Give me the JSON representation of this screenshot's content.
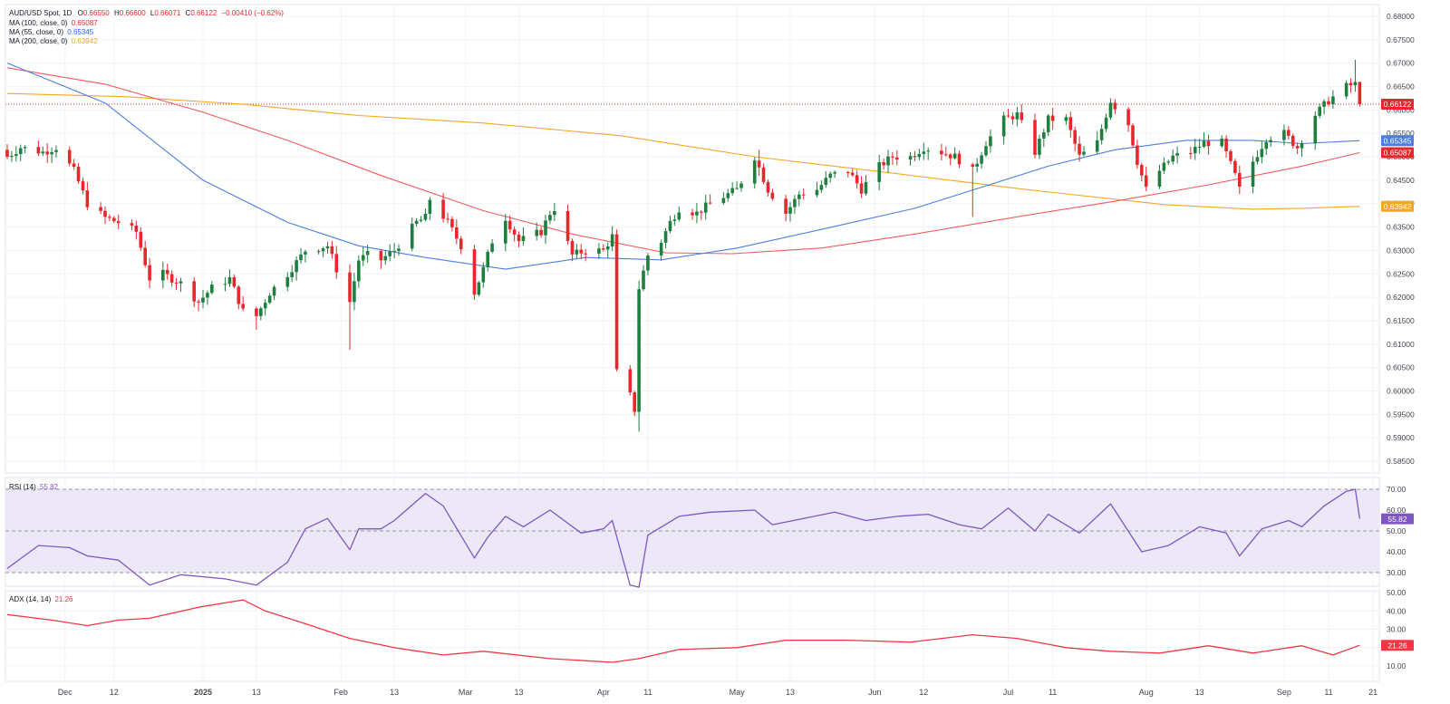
{
  "colors": {
    "up": "#1e7f3f",
    "down": "#e8262b",
    "ma100": "#f05a5f",
    "ma55": "#4a7fe0",
    "ma200": "#f5a623",
    "rsi": "#7e57c2",
    "rsi_band": "#ece8f8",
    "adx": "#f23645",
    "grid": "#f0f3fa",
    "text": "#131722",
    "axis_text": "#434651"
  },
  "header": {
    "symbol": "AUD/USD Spot, 1D",
    "o_label": "O",
    "o": "0.66550",
    "h_label": "H",
    "h": "0.66600",
    "l_label": "L",
    "l": "0.66071",
    "c_label": "C",
    "c": "0.66122",
    "change": "−0.00410 (−0.62%)"
  },
  "indicators": {
    "ma100": {
      "label": "MA (100, close, 0)",
      "value": "0.65087"
    },
    "ma55": {
      "label": "MA (55, close, 0)",
      "value": "0.65345"
    },
    "ma200": {
      "label": "MA (200, close, 0)",
      "value": "0.63942"
    },
    "rsi": {
      "label": "RSI (14)",
      "value": "55.82"
    },
    "adx": {
      "label": "ADX (14, 14)",
      "value": "21.26"
    }
  },
  "chart_data": [
    {
      "type": "candlestick",
      "title": "AUD/USD Spot, 1D",
      "ylim": [
        0.5825,
        0.6825
      ],
      "y_ticks": [
        "0.68000",
        "0.67500",
        "0.67000",
        "0.66500",
        "0.66000",
        "0.65500",
        "0.65000",
        "0.64500",
        "0.64000",
        "0.63500",
        "0.63000",
        "0.62500",
        "0.62000",
        "0.61500",
        "0.61000",
        "0.60500",
        "0.60000",
        "0.59500",
        "0.59000",
        "0.58500"
      ],
      "x_range": [
        "2024-11-18",
        "2025-09-22"
      ],
      "x_ticks": [
        {
          "date": "2024-12-01",
          "label": "Dec"
        },
        {
          "date": "2024-12-12",
          "label": "12"
        },
        {
          "date": "2025-01-01",
          "label": "2025"
        },
        {
          "date": "2025-01-13",
          "label": "13"
        },
        {
          "date": "2025-02-01",
          "label": "Feb"
        },
        {
          "date": "2025-02-13",
          "label": "13"
        },
        {
          "date": "2025-03-01",
          "label": "Mar"
        },
        {
          "date": "2025-03-13",
          "label": "13"
        },
        {
          "date": "2025-04-01",
          "label": "Apr"
        },
        {
          "date": "2025-04-11",
          "label": "11"
        },
        {
          "date": "2025-05-01",
          "label": "May"
        },
        {
          "date": "2025-05-13",
          "label": "13"
        },
        {
          "date": "2025-06-01",
          "label": "Jun"
        },
        {
          "date": "2025-06-12",
          "label": "12"
        },
        {
          "date": "2025-07-01",
          "label": "Jul"
        },
        {
          "date": "2025-07-11",
          "label": "11"
        },
        {
          "date": "2025-08-01",
          "label": "Aug"
        },
        {
          "date": "2025-08-13",
          "label": "13"
        },
        {
          "date": "2025-09-01",
          "label": "Sep"
        },
        {
          "date": "2025-09-11",
          "label": "11"
        },
        {
          "date": "2025-09-21",
          "label": "21"
        }
      ],
      "current_price": 0.66122,
      "price_labels": [
        {
          "value": 0.66122,
          "text": "0.66122",
          "color": "#e8262b"
        },
        {
          "value": 0.65345,
          "text": "0.65345",
          "color": "#4a7fe0"
        },
        {
          "value": 0.65087,
          "text": "0.65087",
          "color": "#e8262b"
        },
        {
          "value": 0.63942,
          "text": "0.63942",
          "color": "#f5a623"
        }
      ],
      "close_anchors": [
        [
          "2024-11-18",
          0.65
        ],
        [
          "2024-11-21",
          0.652
        ],
        [
          "2024-11-26",
          0.651
        ],
        [
          "2024-11-29",
          0.652
        ],
        [
          "2024-12-03",
          0.647
        ],
        [
          "2024-12-06",
          0.64
        ],
        [
          "2024-12-10",
          0.637
        ],
        [
          "2024-12-13",
          0.636
        ],
        [
          "2024-12-17",
          0.634
        ],
        [
          "2024-12-20",
          0.624
        ],
        [
          "2024-12-23",
          0.625
        ],
        [
          "2024-12-27",
          0.623
        ],
        [
          "2024-12-31",
          0.619
        ],
        [
          "2025-01-03",
          0.622
        ],
        [
          "2025-01-07",
          0.624
        ],
        [
          "2025-01-10",
          0.617
        ],
        [
          "2025-01-13",
          0.616
        ],
        [
          "2025-01-16",
          0.621
        ],
        [
          "2025-01-20",
          0.625
        ],
        [
          "2025-01-24",
          0.63
        ],
        [
          "2025-01-29",
          0.631
        ],
        [
          "2025-01-31",
          0.626
        ],
        [
          "2025-02-03",
          0.619
        ],
        [
          "2025-02-05",
          0.628
        ],
        [
          "2025-02-07",
          0.629
        ],
        [
          "2025-02-10",
          0.628
        ],
        [
          "2025-02-13",
          0.63
        ],
        [
          "2025-02-18",
          0.636
        ],
        [
          "2025-02-20",
          0.637
        ],
        [
          "2025-02-21",
          0.641
        ],
        [
          "2025-02-25",
          0.636
        ],
        [
          "2025-02-28",
          0.631
        ],
        [
          "2025-03-03",
          0.621
        ],
        [
          "2025-03-05",
          0.626
        ],
        [
          "2025-03-07",
          0.632
        ],
        [
          "2025-03-10",
          0.637
        ],
        [
          "2025-03-13",
          0.632
        ],
        [
          "2025-03-18",
          0.634
        ],
        [
          "2025-03-20",
          0.638
        ],
        [
          "2025-03-21",
          0.639
        ],
        [
          "2025-03-25",
          0.629
        ],
        [
          "2025-03-28",
          0.63
        ],
        [
          "2025-04-01",
          0.63
        ],
        [
          "2025-04-03",
          0.633
        ],
        [
          "2025-04-04",
          0.604
        ],
        [
          "2025-04-07",
          0.599
        ],
        [
          "2025-04-08",
          0.596
        ],
        [
          "2025-04-09",
          0.622
        ],
        [
          "2025-04-11",
          0.629
        ],
        [
          "2025-04-14",
          0.632
        ],
        [
          "2025-04-16",
          0.636
        ],
        [
          "2025-04-18",
          0.639
        ],
        [
          "2025-04-22",
          0.638
        ],
        [
          "2025-04-25",
          0.64
        ],
        [
          "2025-04-29",
          0.642
        ],
        [
          "2025-05-01",
          0.643
        ],
        [
          "2025-05-05",
          0.65
        ],
        [
          "2025-05-08",
          0.643
        ],
        [
          "2025-05-12",
          0.638
        ],
        [
          "2025-05-15",
          0.642
        ],
        [
          "2025-05-19",
          0.643
        ],
        [
          "2025-05-22",
          0.646
        ],
        [
          "2025-05-26",
          0.647
        ],
        [
          "2025-05-29",
          0.643
        ],
        [
          "2025-06-02",
          0.648
        ],
        [
          "2025-06-05",
          0.65
        ],
        [
          "2025-06-09",
          0.65
        ],
        [
          "2025-06-12",
          0.652
        ],
        [
          "2025-06-16",
          0.651
        ],
        [
          "2025-06-19",
          0.65
        ],
        [
          "2025-06-23",
          0.647
        ],
        [
          "2025-06-26",
          0.653
        ],
        [
          "2025-06-30",
          0.658
        ],
        [
          "2025-07-03",
          0.659
        ],
        [
          "2025-07-07",
          0.651
        ],
        [
          "2025-07-10",
          0.658
        ],
        [
          "2025-07-14",
          0.658
        ],
        [
          "2025-07-17",
          0.65
        ],
        [
          "2025-07-21",
          0.653
        ],
        [
          "2025-07-24",
          0.662
        ],
        [
          "2025-07-28",
          0.657
        ],
        [
          "2025-07-30",
          0.649
        ],
        [
          "2025-08-01",
          0.643
        ],
        [
          "2025-08-04",
          0.647
        ],
        [
          "2025-08-07",
          0.65
        ],
        [
          "2025-08-11",
          0.651
        ],
        [
          "2025-08-14",
          0.653
        ],
        [
          "2025-08-18",
          0.653
        ],
        [
          "2025-08-21",
          0.646
        ],
        [
          "2025-08-22",
          0.643
        ],
        [
          "2025-08-25",
          0.649
        ],
        [
          "2025-08-28",
          0.654
        ],
        [
          "2025-09-01",
          0.655
        ],
        [
          "2025-09-04",
          0.652
        ],
        [
          "2025-09-08",
          0.659
        ],
        [
          "2025-09-11",
          0.662
        ],
        [
          "2025-09-15",
          0.665
        ],
        [
          "2025-09-17",
          0.6655
        ],
        [
          "2025-09-18",
          0.66122
        ]
      ],
      "notable_highs": [
        [
          "2025-09-17",
          0.6707
        ],
        [
          "2025-07-24",
          0.6625
        ],
        [
          "2025-05-06",
          0.6515
        ]
      ],
      "notable_lows": [
        [
          "2025-04-09",
          0.5913
        ],
        [
          "2025-02-03",
          0.6088
        ],
        [
          "2025-01-13",
          0.6131
        ],
        [
          "2025-06-23",
          0.6372
        ]
      ]
    },
    {
      "type": "line",
      "name": "MA (55, close, 0)",
      "color": "#4a7fe0",
      "points": [
        [
          "2024-11-18",
          0.67
        ],
        [
          "2024-12-10",
          0.6615
        ],
        [
          "2025-01-01",
          0.645
        ],
        [
          "2025-01-20",
          0.636
        ],
        [
          "2025-02-05",
          0.631
        ],
        [
          "2025-02-20",
          0.6285
        ],
        [
          "2025-03-10",
          0.626
        ],
        [
          "2025-03-28",
          0.6285
        ],
        [
          "2025-04-14",
          0.628
        ],
        [
          "2025-05-01",
          0.6305
        ],
        [
          "2025-05-20",
          0.6345
        ],
        [
          "2025-06-10",
          0.639
        ],
        [
          "2025-06-25",
          0.6435
        ],
        [
          "2025-07-10",
          0.648
        ],
        [
          "2025-07-25",
          0.6515
        ],
        [
          "2025-08-10",
          0.6535
        ],
        [
          "2025-08-25",
          0.6535
        ],
        [
          "2025-09-05",
          0.6528
        ],
        [
          "2025-09-18",
          0.65345
        ]
      ]
    },
    {
      "type": "line",
      "name": "MA (100, close, 0)",
      "color": "#f05a5f",
      "points": [
        [
          "2024-11-18",
          0.669
        ],
        [
          "2024-12-10",
          0.6655
        ],
        [
          "2025-01-01",
          0.6595
        ],
        [
          "2025-01-20",
          0.6535
        ],
        [
          "2025-02-10",
          0.646
        ],
        [
          "2025-03-05",
          0.6385
        ],
        [
          "2025-03-25",
          0.6335
        ],
        [
          "2025-04-15",
          0.6295
        ],
        [
          "2025-04-30",
          0.6293
        ],
        [
          "2025-05-20",
          0.6305
        ],
        [
          "2025-06-10",
          0.6335
        ],
        [
          "2025-07-05",
          0.6375
        ],
        [
          "2025-07-25",
          0.6405
        ],
        [
          "2025-08-15",
          0.644
        ],
        [
          "2025-09-05",
          0.648
        ],
        [
          "2025-09-18",
          0.65087
        ]
      ]
    },
    {
      "type": "line",
      "name": "MA (200, close, 0)",
      "color": "#f5a623",
      "points": [
        [
          "2024-11-18",
          0.6635
        ],
        [
          "2024-12-15",
          0.6628
        ],
        [
          "2025-01-10",
          0.6612
        ],
        [
          "2025-02-05",
          0.6588
        ],
        [
          "2025-03-05",
          0.6572
        ],
        [
          "2025-04-05",
          0.6545
        ],
        [
          "2025-05-05",
          0.65
        ],
        [
          "2025-06-05",
          0.6465
        ],
        [
          "2025-07-05",
          0.643
        ],
        [
          "2025-08-05",
          0.6398
        ],
        [
          "2025-08-25",
          0.6388
        ],
        [
          "2025-09-05",
          0.639
        ],
        [
          "2025-09-18",
          0.63942
        ]
      ]
    },
    {
      "type": "line",
      "name": "RSI (14)",
      "ylim": [
        25,
        75
      ],
      "y_ticks": [
        "70.00",
        "60.00",
        "50.00",
        "40.00",
        "30.00"
      ],
      "band": [
        30,
        70
      ],
      "midline": 50,
      "current": 55.82,
      "points": [
        [
          "2024-11-18",
          32
        ],
        [
          "2024-11-25",
          43
        ],
        [
          "2024-12-02",
          42
        ],
        [
          "2024-12-06",
          38
        ],
        [
          "2024-12-13",
          36
        ],
        [
          "2024-12-20",
          24
        ],
        [
          "2024-12-27",
          29
        ],
        [
          "2025-01-06",
          27
        ],
        [
          "2025-01-13",
          24
        ],
        [
          "2025-01-20",
          35
        ],
        [
          "2025-01-24",
          51
        ],
        [
          "2025-01-29",
          56
        ],
        [
          "2025-02-03",
          41
        ],
        [
          "2025-02-05",
          51
        ],
        [
          "2025-02-10",
          51
        ],
        [
          "2025-02-13",
          55
        ],
        [
          "2025-02-20",
          68
        ],
        [
          "2025-02-24",
          62
        ],
        [
          "2025-03-03",
          37
        ],
        [
          "2025-03-06",
          47
        ],
        [
          "2025-03-10",
          57
        ],
        [
          "2025-03-14",
          52
        ],
        [
          "2025-03-20",
          60
        ],
        [
          "2025-03-27",
          49
        ],
        [
          "2025-04-01",
          51
        ],
        [
          "2025-04-03",
          55
        ],
        [
          "2025-04-07",
          24
        ],
        [
          "2025-04-09",
          23
        ],
        [
          "2025-04-11",
          48
        ],
        [
          "2025-04-18",
          57
        ],
        [
          "2025-04-25",
          59
        ],
        [
          "2025-05-05",
          60
        ],
        [
          "2025-05-09",
          53
        ],
        [
          "2025-05-16",
          56
        ],
        [
          "2025-05-23",
          59
        ],
        [
          "2025-05-30",
          55
        ],
        [
          "2025-06-06",
          57
        ],
        [
          "2025-06-13",
          58
        ],
        [
          "2025-06-20",
          53
        ],
        [
          "2025-06-25",
          51
        ],
        [
          "2025-07-01",
          61
        ],
        [
          "2025-07-07",
          50
        ],
        [
          "2025-07-10",
          58
        ],
        [
          "2025-07-17",
          49
        ],
        [
          "2025-07-24",
          63
        ],
        [
          "2025-07-31",
          40
        ],
        [
          "2025-08-06",
          43
        ],
        [
          "2025-08-13",
          52
        ],
        [
          "2025-08-19",
          49
        ],
        [
          "2025-08-22",
          38
        ],
        [
          "2025-08-27",
          51
        ],
        [
          "2025-09-02",
          55
        ],
        [
          "2025-09-05",
          52
        ],
        [
          "2025-09-10",
          62
        ],
        [
          "2025-09-15",
          69
        ],
        [
          "2025-09-17",
          70
        ],
        [
          "2025-09-18",
          55.82
        ]
      ]
    },
    {
      "type": "line",
      "name": "ADX (14, 14)",
      "ylim": [
        5,
        52
      ],
      "y_ticks": [
        "50.00",
        "40.00",
        "30.00",
        "20.00",
        "10.00"
      ],
      "current": 21.26,
      "points": [
        [
          "2024-11-18",
          38
        ],
        [
          "2024-11-28",
          35
        ],
        [
          "2024-12-06",
          32
        ],
        [
          "2024-12-13",
          35
        ],
        [
          "2024-12-20",
          36
        ],
        [
          "2024-12-31",
          42
        ],
        [
          "2025-01-10",
          46
        ],
        [
          "2025-01-15",
          40
        ],
        [
          "2025-01-24",
          33
        ],
        [
          "2025-02-03",
          25
        ],
        [
          "2025-02-13",
          20
        ],
        [
          "2025-02-24",
          16
        ],
        [
          "2025-03-05",
          18
        ],
        [
          "2025-03-20",
          14
        ],
        [
          "2025-04-03",
          12
        ],
        [
          "2025-04-09",
          14
        ],
        [
          "2025-04-18",
          19
        ],
        [
          "2025-05-01",
          20
        ],
        [
          "2025-05-12",
          24
        ],
        [
          "2025-05-26",
          24
        ],
        [
          "2025-06-09",
          23
        ],
        [
          "2025-06-23",
          27
        ],
        [
          "2025-07-03",
          25
        ],
        [
          "2025-07-14",
          20
        ],
        [
          "2025-07-24",
          18
        ],
        [
          "2025-08-04",
          17
        ],
        [
          "2025-08-15",
          21
        ],
        [
          "2025-08-25",
          17
        ],
        [
          "2025-09-05",
          21
        ],
        [
          "2025-09-12",
          16
        ],
        [
          "2025-09-18",
          21.26
        ]
      ]
    }
  ]
}
